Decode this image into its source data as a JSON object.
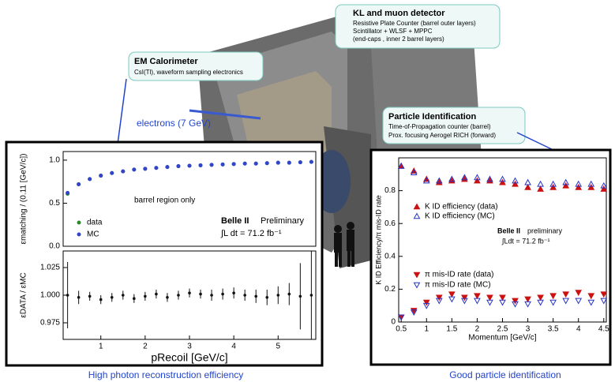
{
  "callouts": [
    {
      "title": "KL and muon detector",
      "lines": [
        "Resistive Plate Counter (barrel outer layers)",
        "Scintillator + WLSF + MPPC",
        "(end-caps , inner 2 barrel layers)"
      ]
    },
    {
      "title": "EM Calorimeter",
      "lines": [
        "CsI(Tl), waveform sampling electronics"
      ]
    },
    {
      "title": "Particle Identification",
      "lines": [
        "Time-of-Propagation counter (barrel)",
        "Prox. focusing Aerogel RICH (forward)"
      ]
    }
  ],
  "beam_label": "electrons  (7 GeV)",
  "captions": [
    "High photon reconstruction efficiency",
    "Good particle identification"
  ],
  "chart_data": [
    {
      "type": "scatter",
      "ylabel": "εmatching / (0.11 [GeV/c])",
      "annotations": [
        "barrel region only",
        "Belle II",
        "Preliminary",
        "∫L dt = 71.2 fb⁻¹"
      ],
      "xlim": [
        0.15,
        5.85
      ],
      "ylim": [
        0.0,
        1.1
      ],
      "yticks": [
        {
          "value": 0.0,
          "label": "0.0"
        },
        {
          "value": 0.5,
          "label": "0.5"
        },
        {
          "value": 1.0,
          "label": "1.0"
        }
      ],
      "x": [
        0.25,
        0.5,
        0.75,
        1.0,
        1.25,
        1.5,
        1.75,
        2.0,
        2.25,
        2.5,
        2.75,
        3.0,
        3.25,
        3.5,
        3.75,
        4.0,
        4.25,
        4.5,
        4.75,
        5.0,
        5.25,
        5.5,
        5.75
      ],
      "series": [
        {
          "name": "data",
          "color": "#2a8a2a",
          "marker": "circle",
          "values": [
            0.61,
            0.72,
            0.78,
            0.82,
            0.85,
            0.87,
            0.89,
            0.9,
            0.91,
            0.92,
            0.93,
            0.935,
            0.94,
            0.945,
            0.95,
            0.955,
            0.96,
            0.96,
            0.965,
            0.97,
            0.97,
            0.975,
            0.98
          ]
        },
        {
          "name": "MC",
          "color": "#3344cc",
          "marker": "circle",
          "values": [
            0.62,
            0.72,
            0.78,
            0.82,
            0.85,
            0.87,
            0.89,
            0.9,
            0.91,
            0.92,
            0.93,
            0.935,
            0.94,
            0.945,
            0.95,
            0.955,
            0.96,
            0.96,
            0.965,
            0.97,
            0.97,
            0.975,
            0.98
          ]
        }
      ]
    },
    {
      "type": "errorbar",
      "ylabel": "εDATA / εMC",
      "xlabel": "pRecoil [GeV/c]",
      "xlim": [
        0.15,
        5.85
      ],
      "ylim": [
        0.96,
        1.04
      ],
      "xticks": [
        1,
        2,
        3,
        4,
        5
      ],
      "yticks": [
        0.975,
        {
          "value": 1.0,
          "label": "1.000"
        },
        1.025
      ],
      "x": [
        0.25,
        0.5,
        0.75,
        1.0,
        1.25,
        1.5,
        1.75,
        2.0,
        2.25,
        2.5,
        2.75,
        3.0,
        3.25,
        3.5,
        3.75,
        4.0,
        4.25,
        4.5,
        4.75,
        5.0,
        5.25,
        5.5,
        5.75
      ],
      "series": [
        {
          "color": "#111111",
          "values": [
            1.0,
            0.998,
            0.999,
            0.996,
            0.998,
            1.0,
            0.997,
            0.999,
            1.001,
            0.998,
            1.0,
            1.002,
            1.001,
            1.0,
            1.001,
            1.002,
            1.0,
            0.999,
            0.998,
            1.0,
            1.001,
            0.999,
            1.0
          ],
          "errors": [
            0.03,
            0.006,
            0.004,
            0.004,
            0.004,
            0.004,
            0.004,
            0.004,
            0.004,
            0.004,
            0.004,
            0.004,
            0.004,
            0.005,
            0.005,
            0.005,
            0.005,
            0.006,
            0.007,
            0.008,
            0.01,
            0.03,
            0.04
          ]
        }
      ]
    },
    {
      "type": "scatter",
      "ylabel": "K ID Efficiency/π mis-ID rate",
      "xlabel": "Momentum [GeV/c]",
      "annotations": [
        "Belle II",
        "preliminary",
        "∫Ldt = 71.2 fb⁻¹"
      ],
      "xlim": [
        0.45,
        4.55
      ],
      "ylim": [
        0,
        1.0
      ],
      "xticks": [
        0.5,
        1,
        1.5,
        2,
        2.5,
        3,
        3.5,
        4,
        4.5
      ],
      "yticks": [
        0,
        0.2,
        0.4,
        0.6,
        0.8
      ],
      "x": [
        0.5,
        0.75,
        1.0,
        1.25,
        1.5,
        1.75,
        2.0,
        2.25,
        2.5,
        2.75,
        3.0,
        3.25,
        3.5,
        3.75,
        4.0,
        4.25,
        4.5
      ],
      "series": [
        {
          "name": "K ID efficiency (data)",
          "color": "#cc1111",
          "marker": "triangle-up",
          "filled": true,
          "values": [
            0.95,
            0.92,
            0.87,
            0.85,
            0.86,
            0.87,
            0.86,
            0.86,
            0.85,
            0.84,
            0.82,
            0.81,
            0.82,
            0.83,
            0.82,
            0.82,
            0.81
          ]
        },
        {
          "name": "K ID efficiency (MC)",
          "color": "#2233cc",
          "marker": "triangle-up",
          "filled": false,
          "values": [
            0.95,
            0.91,
            0.86,
            0.86,
            0.87,
            0.88,
            0.88,
            0.87,
            0.87,
            0.86,
            0.85,
            0.84,
            0.84,
            0.85,
            0.84,
            0.84,
            0.83
          ]
        },
        {
          "name": "π mis-ID rate (data)",
          "color": "#cc1111",
          "marker": "triangle-down",
          "filled": true,
          "values": [
            0.03,
            0.07,
            0.12,
            0.15,
            0.17,
            0.15,
            0.16,
            0.15,
            0.15,
            0.13,
            0.14,
            0.15,
            0.16,
            0.17,
            0.18,
            0.16,
            0.17
          ]
        },
        {
          "name": "π mis-ID rate (MC)",
          "color": "#2233cc",
          "marker": "triangle-down",
          "filled": false,
          "values": [
            0.03,
            0.06,
            0.1,
            0.13,
            0.14,
            0.13,
            0.13,
            0.12,
            0.12,
            0.11,
            0.11,
            0.12,
            0.12,
            0.13,
            0.13,
            0.12,
            0.13
          ]
        }
      ]
    }
  ]
}
